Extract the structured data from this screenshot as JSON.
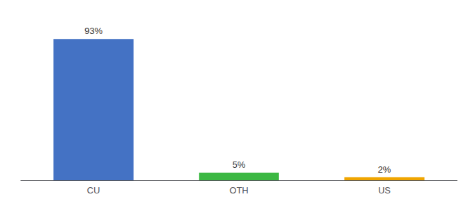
{
  "chart_data": {
    "type": "bar",
    "categories": [
      "CU",
      "OTH",
      "US"
    ],
    "values": [
      93,
      5,
      2
    ],
    "value_labels": [
      "93%",
      "5%",
      "2%"
    ],
    "data_labels": true,
    "colors": [
      "#4472c4",
      "#3cb843",
      "#f0a500"
    ],
    "ylim": [
      0,
      105
    ],
    "grid": false,
    "tick_labels": "x"
  }
}
